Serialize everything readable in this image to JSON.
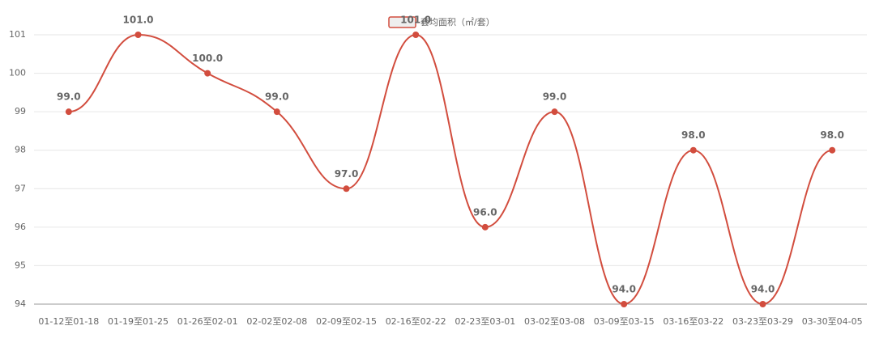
{
  "chart_data": {
    "type": "line",
    "categories": [
      "01-12至01-18",
      "01-19至01-25",
      "01-26至02-01",
      "02-02至02-08",
      "02-09至02-15",
      "02-16至02-22",
      "02-23至03-01",
      "03-02至03-08",
      "03-09至03-15",
      "03-16至03-22",
      "03-23至03-29",
      "03-30至04-05"
    ],
    "series": [
      {
        "name": "套均面积（㎡/套）",
        "color": "#d24d3e",
        "values": [
          99,
          101,
          100,
          99,
          97,
          101,
          96,
          99,
          94,
          98,
          94,
          98
        ],
        "value_labels": [
          "99.0",
          "101.0",
          "100.0",
          "99.0",
          "97.0",
          "101.0",
          "96.0",
          "99.0",
          "94.0",
          "98.0",
          "94.0",
          "98.0"
        ]
      }
    ],
    "ylim": [
      94,
      101
    ],
    "yticks": [
      94,
      95,
      96,
      97,
      98,
      99,
      100,
      101
    ],
    "grid": true,
    "smooth": true,
    "legend": "top"
  }
}
